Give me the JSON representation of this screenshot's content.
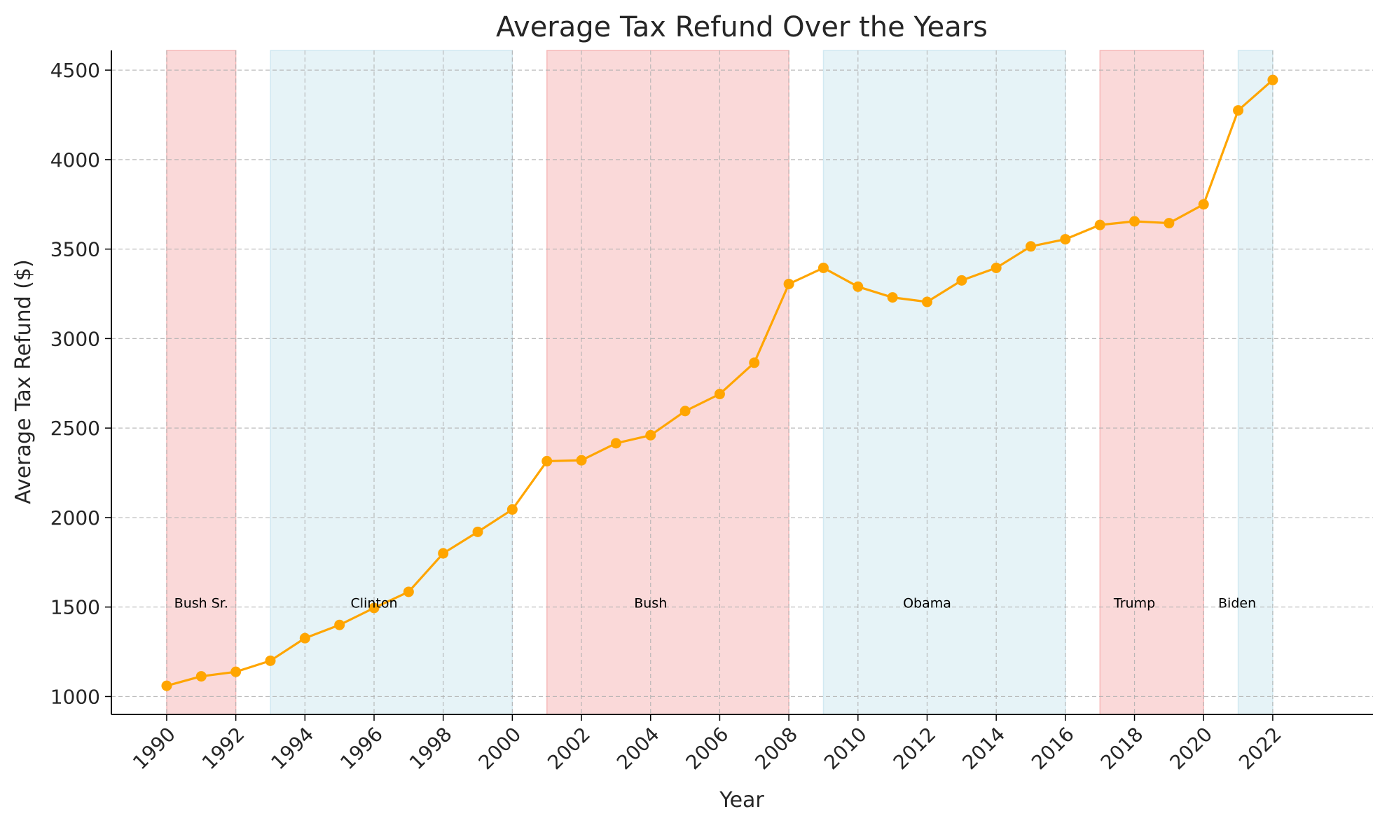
{
  "chart_data": {
    "type": "line",
    "title": "Average Tax Refund Over the Years",
    "xlabel": "Year",
    "ylabel": "Average Tax Refund ($)",
    "x": [
      1990,
      1991,
      1992,
      1993,
      1994,
      1995,
      1996,
      1997,
      1998,
      1999,
      2000,
      2001,
      2002,
      2003,
      2004,
      2005,
      2006,
      2007,
      2008,
      2009,
      2010,
      2011,
      2012,
      2013,
      2014,
      2015,
      2016,
      2017,
      2018,
      2019,
      2020,
      2021,
      2022
    ],
    "series": [
      {
        "values": [
          1060,
          1113,
          1138,
          1200,
          1326,
          1400,
          1495,
          1585,
          1800,
          1920,
          2045,
          2315,
          2320,
          2415,
          2460,
          2595,
          2690,
          2865,
          3305,
          3395,
          3290,
          3230,
          3205,
          3325,
          3395,
          3515,
          3555,
          3635,
          3655,
          3645,
          3750,
          4275,
          4445
        ],
        "color": "#FFA500"
      }
    ],
    "xlim": [
      1988.4,
      2024.9
    ],
    "ylim": [
      900,
      4610
    ],
    "xticks": [
      1990,
      1992,
      1994,
      1996,
      1998,
      2000,
      2002,
      2004,
      2006,
      2008,
      2010,
      2012,
      2014,
      2016,
      2018,
      2020,
      2022
    ],
    "yticks": [
      1000,
      1500,
      2000,
      2500,
      3000,
      3500,
      4000,
      4500
    ],
    "grid": true,
    "eras": [
      {
        "label": "Bush Sr.",
        "start": 1990,
        "end": 1992,
        "party_color": "#F08080",
        "label_x": 1991,
        "label_y": 1520
      },
      {
        "label": "Clinton",
        "start": 1993,
        "end": 2000,
        "party_color": "#ADD8E6",
        "label_x": 1996,
        "label_y": 1520
      },
      {
        "label": "Bush",
        "start": 2001,
        "end": 2008,
        "party_color": "#F08080",
        "label_x": 2004,
        "label_y": 1520
      },
      {
        "label": "Obama",
        "start": 2009,
        "end": 2016,
        "party_color": "#ADD8E6",
        "label_x": 2012,
        "label_y": 1520
      },
      {
        "label": "Trump",
        "start": 2017,
        "end": 2020,
        "party_color": "#F08080",
        "label_x": 2018,
        "label_y": 1520
      },
      {
        "label": "Biden",
        "start": 2021,
        "end": 2022,
        "party_color": "#ADD8E6",
        "label_x": 2020.97,
        "label_y": 1520
      }
    ]
  }
}
